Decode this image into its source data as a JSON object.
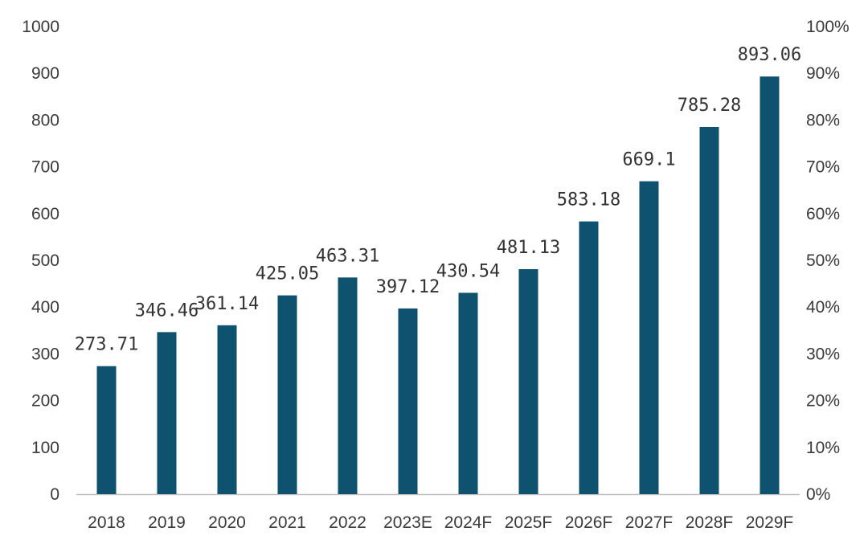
{
  "chart_data": {
    "type": "bar",
    "categories": [
      "2018",
      "2019",
      "2020",
      "2021",
      "2022",
      "2023E",
      "2024F",
      "2025F",
      "2026F",
      "2027F",
      "2028F",
      "2029F"
    ],
    "values": [
      273.71,
      346.46,
      361.14,
      425.05,
      463.31,
      397.12,
      430.54,
      481.13,
      583.18,
      669.1,
      785.28,
      893.06
    ],
    "data_labels": [
      "273.71",
      "346.46",
      "361.14",
      "425.05",
      "463.31",
      "397.12",
      "430.54",
      "481.13",
      "583.18",
      "669.1",
      "785.28",
      "893.06"
    ],
    "ylim": [
      0,
      1000
    ],
    "y_ticks": [
      "0",
      "100",
      "200",
      "300",
      "400",
      "500",
      "600",
      "700",
      "800",
      "900",
      "1000"
    ],
    "y2lim": [
      0,
      100
    ],
    "y2_ticks": [
      "0%",
      "10%",
      "20%",
      "30%",
      "40%",
      "50%",
      "60%",
      "70%",
      "80%",
      "90%",
      "100%"
    ],
    "bar_color": "#0f5270",
    "axis_color": "#bfbfbf",
    "grid": false,
    "legend": "none"
  }
}
